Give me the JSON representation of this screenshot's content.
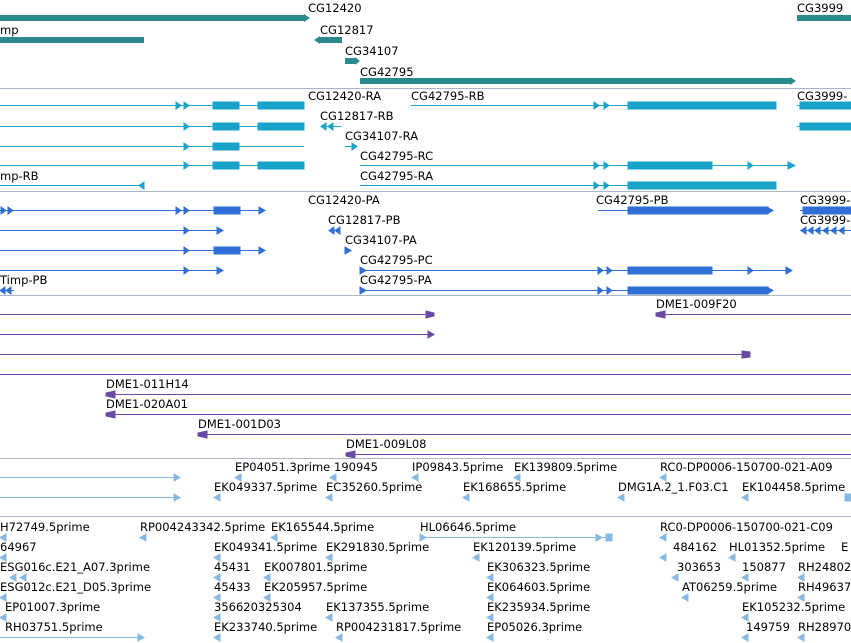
{
  "tracks": {
    "genes": {
      "color": "#2a8a8e",
      "labels": [
        "CG12420",
        "mp",
        "CG12817",
        "CG34107",
        "CG42795",
        "CG3999"
      ]
    },
    "transcripts": {
      "color": "#1aa3c9",
      "labels": [
        "CG12420-RA",
        "CG42795-RB",
        "CG3999-",
        "CG12817-RB",
        "CG34107-RA",
        "CG42795-RC",
        "mp-RB",
        "CG42795-RA"
      ]
    },
    "proteins": {
      "color": "#2f6fd6",
      "labels": [
        "CG12420-PA",
        "CG42795-PB",
        "CG3999-",
        "CG12817-PB",
        "CG3999-",
        "CG34107-PA",
        "CG42795-PC",
        "Timp-PB",
        "CG42795-PA"
      ]
    },
    "clones": {
      "color": "#6a4aa5",
      "labels": [
        "DME1-009F20",
        "DME1-011H14",
        "DME1-020A01",
        "DME1-001D03",
        "DME1-009L08"
      ]
    },
    "ests_a": {
      "color": "#86b9e2",
      "labels": [
        "EP04051.3prime",
        "190945",
        "IP09843.5prime",
        "EK139809.5prime",
        "RC0-DP0006-150700-021-A09",
        "EK049337.5prime",
        "EC35260.5prime",
        "EK168655.5prime",
        "DMG1A.2_1.F03.C1",
        "EK104458.5prime"
      ]
    },
    "ests_b": {
      "color": "#86b9e2",
      "labels": [
        "H72749.5prime",
        "RP004243342.5prime",
        "EK165544.5prime",
        "HL06646.5prime",
        "RC0-DP0006-150700-021-C09",
        "64967",
        "EK049341.5prime",
        "EK291830.5prime",
        "EK120139.5prime",
        "484162",
        "HL01352.5prime",
        "E",
        "ESG016c.E21_A07.3prime",
        "45431",
        "EK007801.5prime",
        "EK306323.5prime",
        "303653",
        "150877",
        "RH24802",
        "ESG012c.E21_D05.3prime",
        "45433",
        "EK205957.5prime",
        "EK064603.5prime",
        "AT06259.5prime",
        "RH49637",
        "EP01007.3prime",
        "356620325304",
        "EK137355.5prime",
        "EK235934.5prime",
        "EK105232.5prime",
        "RH03751.5prime",
        "EK233740.5prime",
        "RP004231817.5prime",
        "EP05026.3prime",
        "149759",
        "RH28970"
      ]
    }
  }
}
